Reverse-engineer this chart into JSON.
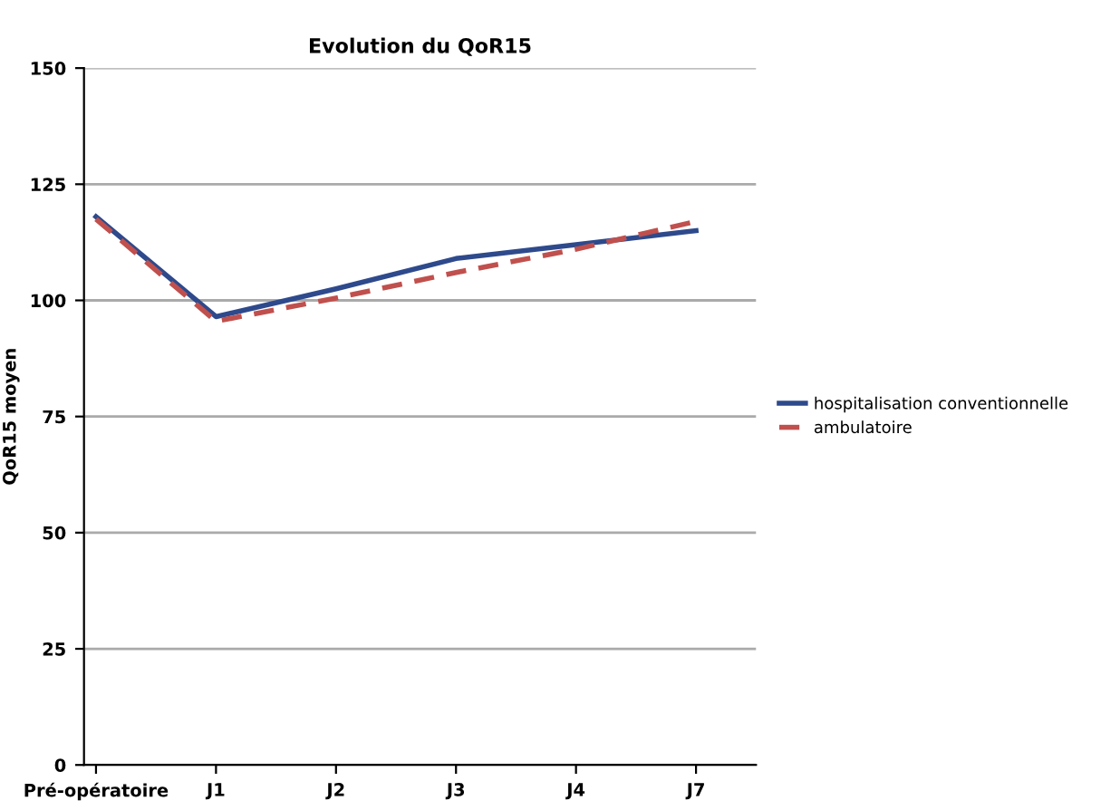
{
  "chart_data": {
    "type": "line",
    "title": "Evolution du QoR15",
    "ylabel": "QoR15 moyen",
    "categories": [
      "Pré-opératoire",
      "J1",
      "J2",
      "J3",
      "J4",
      "J7"
    ],
    "series": [
      {
        "name": "hospitalisation conventionnelle",
        "color": "#2e4a8c",
        "line_style": "solid",
        "values": [
          118,
          96.5,
          102.5,
          109,
          112,
          115
        ]
      },
      {
        "name": "ambulatoire",
        "color": "#c0504d",
        "line_style": "dashed",
        "values": [
          117.5,
          95.5,
          100.5,
          106,
          111,
          117
        ]
      }
    ],
    "ylim": [
      0,
      150
    ],
    "yticks": [
      0,
      25,
      50,
      75,
      100,
      125,
      150
    ],
    "grid": "y",
    "legend": "right",
    "marker": "none"
  }
}
